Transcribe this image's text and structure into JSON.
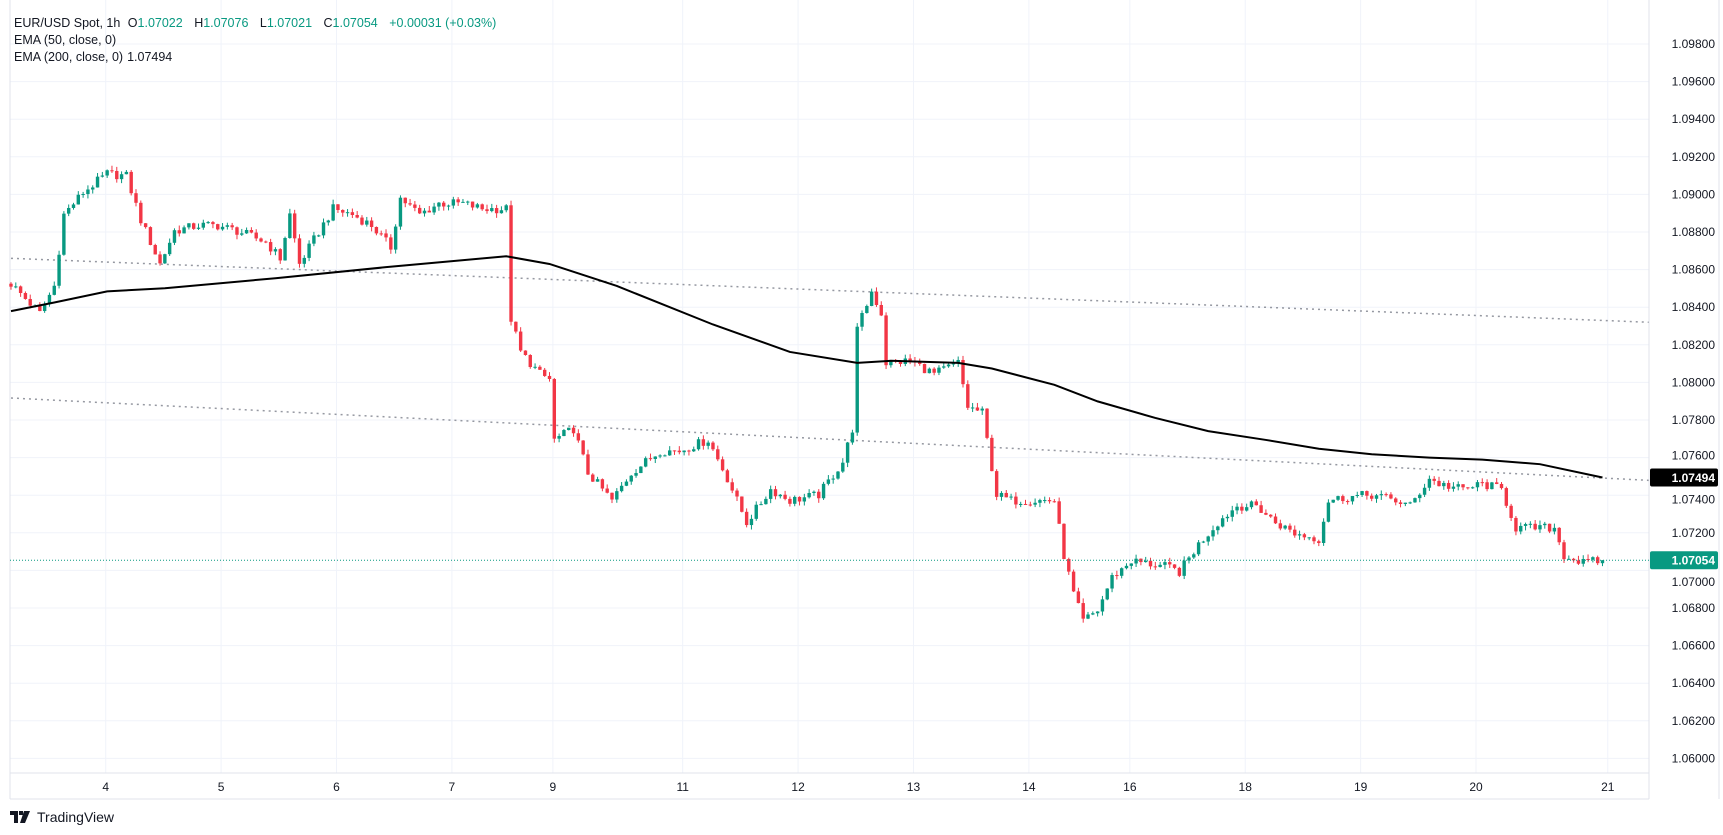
{
  "header": {
    "symbol": "EUR/USD Spot, 1h",
    "open_label": "O",
    "open": "1.07022",
    "high_label": "H",
    "high": "1.07076",
    "low_label": "L",
    "low": "1.07021",
    "close_label": "C",
    "close": "1.07054",
    "change": "+0.00031 (+0.03%)",
    "ema50_label": "EMA (50, close, 0)",
    "ema200_label": "EMA (200, close, 0)",
    "ema200_value": "1.07494"
  },
  "branding": "TradingView",
  "colors": {
    "up": "#089981",
    "down": "#f23645",
    "ema": "#000000",
    "grid": "#f0f3fa",
    "trend": "#9598a1"
  },
  "chart_data": {
    "type": "candlestick",
    "title": "EUR/USD Spot, 1h",
    "ylim": [
      1.0593,
      1.0992
    ],
    "xlim": [
      0,
      342
    ],
    "y_ticks": [
      "1.09800",
      "1.09600",
      "1.09400",
      "1.09200",
      "1.09000",
      "1.08800",
      "1.08600",
      "1.08400",
      "1.08200",
      "1.08000",
      "1.07800",
      "1.07600",
      "1.07400",
      "1.07200",
      "1.07000",
      "1.06800",
      "1.06600",
      "1.06400",
      "1.06200",
      "1.06000"
    ],
    "x_ticks": [
      {
        "label": "4",
        "bar": 19.7
      },
      {
        "label": "5",
        "bar": 43.7
      },
      {
        "label": "6",
        "bar": 67.7
      },
      {
        "label": "7",
        "bar": 91.7
      },
      {
        "label": "9",
        "bar": 112.7
      },
      {
        "label": "11",
        "bar": 139.7
      },
      {
        "label": "12",
        "bar": 163.7
      },
      {
        "label": "13",
        "bar": 187.7
      },
      {
        "label": "14",
        "bar": 211.7
      },
      {
        "label": "16",
        "bar": 232.7
      },
      {
        "label": "18",
        "bar": 256.7
      },
      {
        "label": "19",
        "bar": 280.7
      },
      {
        "label": "20",
        "bar": 304.7
      },
      {
        "label": "21",
        "bar": 332.1
      }
    ],
    "price_path": [
      [
        0,
        1.08525
      ],
      [
        6,
        1.08367
      ],
      [
        9,
        1.08513
      ],
      [
        11,
        1.08893
      ],
      [
        15,
        1.0901
      ],
      [
        20,
        1.0911
      ],
      [
        24,
        1.09098
      ],
      [
        27,
        1.08864
      ],
      [
        31,
        1.0863
      ],
      [
        34,
        1.08806
      ],
      [
        39,
        1.08835
      ],
      [
        43,
        1.08835
      ],
      [
        47,
        1.08806
      ],
      [
        53,
        1.08747
      ],
      [
        56,
        1.08659
      ],
      [
        58,
        1.08893
      ],
      [
        60,
        1.0863
      ],
      [
        63,
        1.08759
      ],
      [
        67,
        1.08923
      ],
      [
        71,
        1.08893
      ],
      [
        75,
        1.08835
      ],
      [
        79,
        1.08718
      ],
      [
        81,
        1.08981
      ],
      [
        85,
        1.08893
      ],
      [
        89,
        1.08952
      ],
      [
        94,
        1.08952
      ],
      [
        98,
        1.08923
      ],
      [
        103,
        1.08923
      ],
      [
        104,
        1.08338
      ],
      [
        106,
        1.08162
      ],
      [
        110,
        1.08045
      ],
      [
        112,
        1.08016
      ],
      [
        113,
        1.07694
      ],
      [
        117,
        1.07753
      ],
      [
        120,
        1.07519
      ],
      [
        125,
        1.07372
      ],
      [
        129,
        1.07519
      ],
      [
        135,
        1.07636
      ],
      [
        139,
        1.07636
      ],
      [
        145,
        1.07694
      ],
      [
        149,
        1.07489
      ],
      [
        153,
        1.07255
      ],
      [
        158,
        1.07431
      ],
      [
        162,
        1.07372
      ],
      [
        168,
        1.07402
      ],
      [
        173,
        1.07577
      ],
      [
        175,
        1.07753
      ],
      [
        176,
        1.08279
      ],
      [
        179,
        1.08484
      ],
      [
        181,
        1.08367
      ],
      [
        182,
        1.08104
      ],
      [
        187,
        1.08115
      ],
      [
        192,
        1.08045
      ],
      [
        197,
        1.08104
      ],
      [
        199,
        1.0787
      ],
      [
        202,
        1.0784
      ],
      [
        205,
        1.07402
      ],
      [
        208,
        1.07372
      ],
      [
        217,
        1.07372
      ],
      [
        219,
        1.0708
      ],
      [
        221,
        1.06875
      ],
      [
        223,
        1.06729
      ],
      [
        226,
        1.06787
      ],
      [
        229,
        1.06963
      ],
      [
        233,
        1.07051
      ],
      [
        240,
        1.07021
      ],
      [
        243,
        1.06992
      ],
      [
        247,
        1.07138
      ],
      [
        251,
        1.07255
      ],
      [
        255,
        1.07343
      ],
      [
        259,
        1.07343
      ],
      [
        263,
        1.07255
      ],
      [
        267,
        1.07197
      ],
      [
        272,
        1.07167
      ],
      [
        274,
        1.07372
      ],
      [
        278,
        1.0739
      ],
      [
        283,
        1.07402
      ],
      [
        288,
        1.07372
      ],
      [
        291,
        1.07343
      ],
      [
        295,
        1.07489
      ],
      [
        297,
        1.0746
      ],
      [
        302,
        1.07431
      ],
      [
        306,
        1.0746
      ],
      [
        310,
        1.07431
      ],
      [
        313,
        1.07226
      ],
      [
        318,
        1.07226
      ],
      [
        321,
        1.07226
      ],
      [
        323,
        1.0708
      ],
      [
        327,
        1.07039
      ],
      [
        331,
        1.07054
      ]
    ],
    "ema200": [
      [
        0,
        1.08379
      ],
      [
        9,
        1.08425
      ],
      [
        20,
        1.08484
      ],
      [
        32,
        1.08501
      ],
      [
        55,
        1.08554
      ],
      [
        78,
        1.08613
      ],
      [
        103,
        1.08671
      ],
      [
        112,
        1.0863
      ],
      [
        126,
        1.08513
      ],
      [
        146,
        1.08308
      ],
      [
        162,
        1.08162
      ],
      [
        176,
        1.08104
      ],
      [
        183,
        1.08115
      ],
      [
        197,
        1.08104
      ],
      [
        204,
        1.08074
      ],
      [
        217,
        1.07987
      ],
      [
        226,
        1.07899
      ],
      [
        238,
        1.07811
      ],
      [
        249,
        1.07741
      ],
      [
        261,
        1.07694
      ],
      [
        272,
        1.07647
      ],
      [
        283,
        1.07618
      ],
      [
        295,
        1.076
      ],
      [
        306,
        1.07589
      ],
      [
        318,
        1.07565
      ],
      [
        331,
        1.07494
      ]
    ],
    "trendlines": [
      {
        "name": "upper",
        "from": [
          0,
          1.0866
        ],
        "to": [
          340.6,
          1.0832
        ]
      },
      {
        "name": "lower",
        "from": [
          0,
          1.07917
        ],
        "to": [
          340.6,
          1.07479
        ]
      }
    ],
    "price_tags": [
      {
        "label": "1.07494",
        "value": 1.07494,
        "color": "#000000"
      },
      {
        "label": "1.07054",
        "value": 1.07054,
        "color": "#089981"
      }
    ]
  }
}
